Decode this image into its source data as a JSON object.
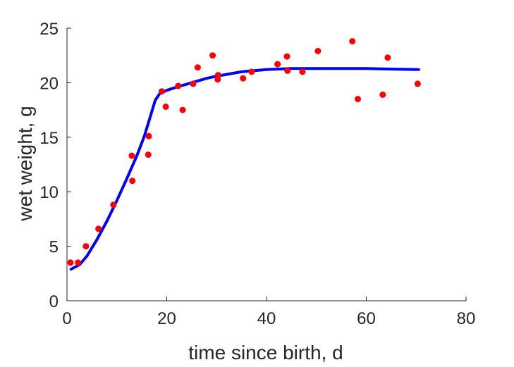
{
  "chart_data": {
    "type": "scatter",
    "title": "",
    "xlabel": "time since birth, d",
    "ylabel": "wet weight, g",
    "xlim": [
      0,
      80
    ],
    "ylim": [
      0,
      25
    ],
    "xticks": [
      0,
      20,
      40,
      60,
      80
    ],
    "yticks": [
      0,
      5,
      10,
      15,
      20,
      25
    ],
    "grid": false,
    "series": [
      {
        "type": "scatter",
        "color": "#ff0000",
        "points": [
          [
            0.7,
            3.5
          ],
          [
            2.2,
            3.5
          ],
          [
            3.8,
            5.0
          ],
          [
            6.3,
            6.6
          ],
          [
            9.3,
            8.8
          ],
          [
            13.0,
            13.3
          ],
          [
            13.1,
            11.0
          ],
          [
            16.3,
            13.4
          ],
          [
            16.4,
            15.1
          ],
          [
            19.0,
            19.2
          ],
          [
            19.8,
            17.8
          ],
          [
            22.3,
            19.7
          ],
          [
            23.2,
            17.5
          ],
          [
            25.3,
            19.9
          ],
          [
            26.2,
            21.4
          ],
          [
            29.2,
            22.5
          ],
          [
            30.3,
            20.7
          ],
          [
            30.2,
            20.3
          ],
          [
            35.3,
            20.4
          ],
          [
            37.0,
            21.0
          ],
          [
            42.2,
            21.7
          ],
          [
            44.1,
            22.4
          ],
          [
            44.2,
            21.1
          ],
          [
            47.2,
            21.0
          ],
          [
            50.3,
            22.9
          ],
          [
            57.2,
            23.8
          ],
          [
            58.3,
            18.5
          ],
          [
            63.3,
            18.9
          ],
          [
            64.3,
            22.3
          ],
          [
            70.3,
            19.9
          ]
        ]
      },
      {
        "type": "line",
        "color": "#0000ff",
        "points": [
          [
            0.8,
            2.9
          ],
          [
            2.5,
            3.3
          ],
          [
            4.0,
            4.1
          ],
          [
            6.0,
            5.6
          ],
          [
            8.0,
            7.3
          ],
          [
            10.0,
            9.2
          ],
          [
            12.0,
            11.2
          ],
          [
            14.0,
            13.3
          ],
          [
            15.5,
            15.1
          ],
          [
            16.7,
            16.9
          ],
          [
            17.7,
            18.4
          ],
          [
            18.6,
            19.0
          ],
          [
            20.0,
            19.3
          ],
          [
            22.0,
            19.6
          ],
          [
            25.0,
            20.0
          ],
          [
            28.0,
            20.4
          ],
          [
            30.0,
            20.6
          ],
          [
            35.0,
            21.0
          ],
          [
            40.0,
            21.2
          ],
          [
            45.0,
            21.3
          ],
          [
            50.0,
            21.3
          ],
          [
            55.0,
            21.3
          ],
          [
            60.0,
            21.3
          ],
          [
            65.0,
            21.25
          ],
          [
            70.5,
            21.2
          ]
        ]
      }
    ]
  }
}
